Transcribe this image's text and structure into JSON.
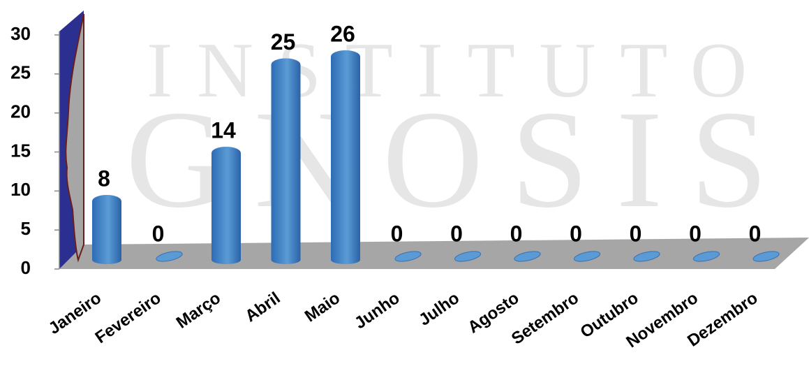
{
  "chart_data": {
    "type": "bar",
    "watermark": [
      "INSTITUTO",
      "GNOSIS"
    ],
    "categories": [
      "Janeiro",
      "Fevereiro",
      "Março",
      "Abril",
      "Maio",
      "Junho",
      "Julho",
      "Agosto",
      "Setembro",
      "Outubro",
      "Novembro",
      "Dezembro"
    ],
    "values": [
      8,
      0,
      14,
      25,
      26,
      0,
      0,
      0,
      0,
      0,
      0,
      0
    ],
    "color": "#5b9bd5",
    "ylim": [
      0,
      30
    ],
    "yticks": [
      0,
      5,
      10,
      15,
      20,
      25,
      30
    ]
  }
}
